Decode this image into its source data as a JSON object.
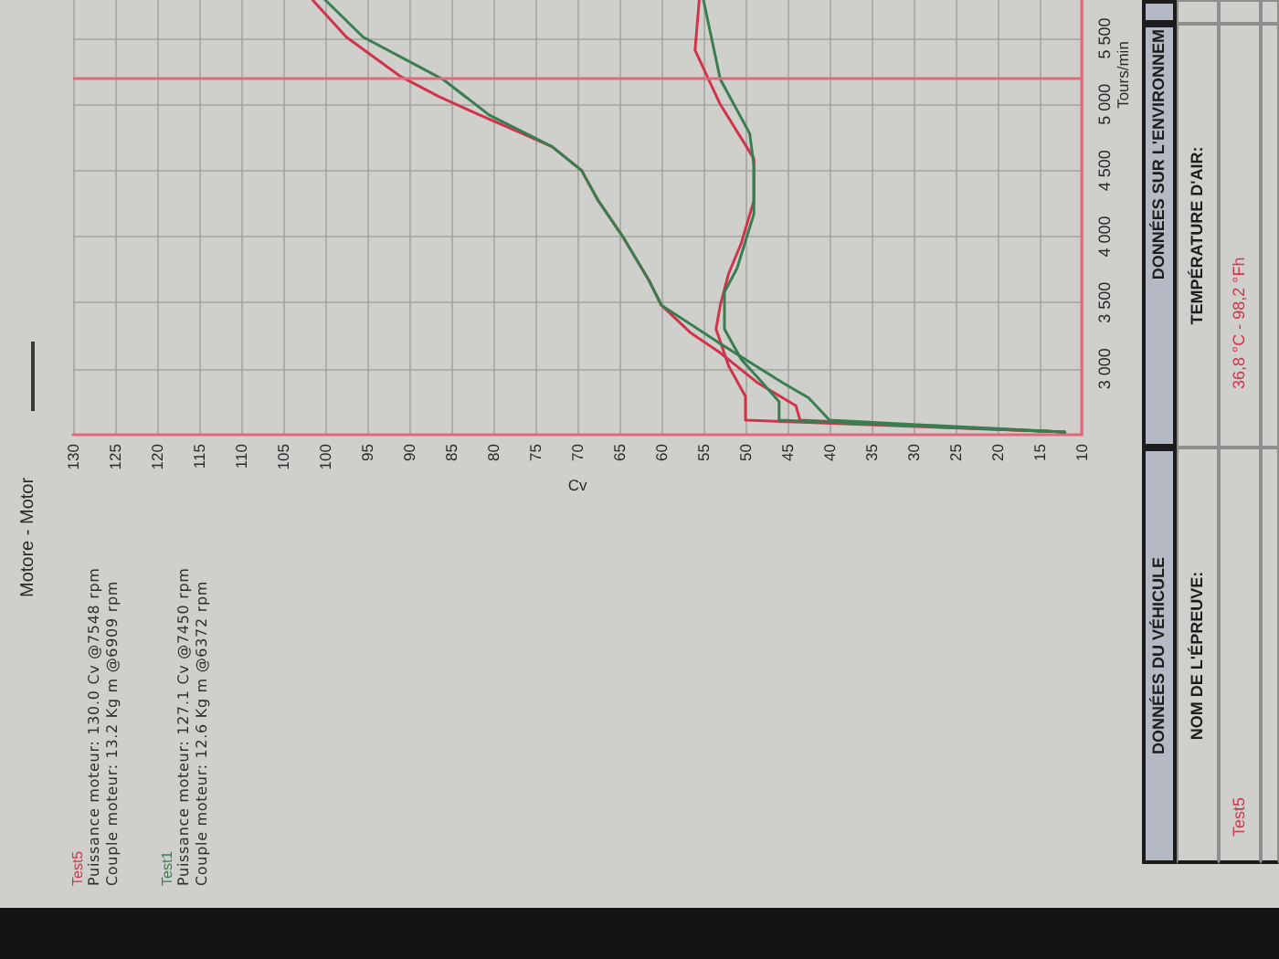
{
  "chart_data": {
    "type": "line",
    "title": "Motore - Motor",
    "xlabel": "Cv",
    "ylabel": "Tours/min",
    "xlim": [
      130,
      10
    ],
    "xticks": [
      130,
      125,
      120,
      115,
      110,
      105,
      100,
      95,
      90,
      85,
      80,
      75,
      70,
      65,
      60,
      55,
      50,
      45,
      40,
      35,
      30,
      25,
      20,
      15,
      10
    ],
    "ylim": [
      2500,
      5790
    ],
    "yticks": [
      {
        "value": 3000,
        "label": "3 000"
      },
      {
        "value": 3500,
        "label": "3 500"
      },
      {
        "value": 4000,
        "label": "4 000"
      },
      {
        "value": 4500,
        "label": "4 500"
      },
      {
        "value": 5000,
        "label": "5 000"
      },
      {
        "value": 5500,
        "label": "5 500"
      }
    ],
    "grid": true,
    "legend": "bottom left",
    "ref_lines": [
      {
        "axis": "y",
        "value": 5200,
        "color": "#e2697b"
      }
    ],
    "series": [
      {
        "name": "Test5",
        "color": "#d1334b",
        "x": [
          12,
          43.5,
          44,
          48.5,
          53,
          56.5,
          60,
          61.5,
          64.5,
          67.5,
          69.5,
          73,
          75.5,
          82,
          86.5,
          91,
          97.5,
          101.5
        ],
        "values": [
          2520,
          2610,
          2720,
          2890,
          3120,
          3270,
          3480,
          3670,
          3990,
          4270,
          4500,
          4680,
          4750,
          4930,
          5060,
          5210,
          5510,
          5790
        ]
      },
      {
        "color": "#d1334b",
        "x": [
          12,
          50,
          50,
          52,
          53.5,
          53,
          52,
          50.5,
          49,
          49,
          53,
          56,
          55.5
        ],
        "values": [
          2520,
          2610,
          2790,
          3020,
          3300,
          3480,
          3720,
          3950,
          4270,
          4590,
          5000,
          5410,
          5790
        ]
      },
      {
        "name": "Test1",
        "color": "#3a7d50",
        "x": [
          12,
          40,
          42.5,
          45.5,
          53,
          60,
          61.5,
          64.5,
          67.5,
          69.5,
          73,
          80.5,
          86,
          95.5,
          100
        ],
        "values": [
          2520,
          2610,
          2780,
          2890,
          3190,
          3480,
          3670,
          3990,
          4270,
          4500,
          4680,
          4920,
          5190,
          5510,
          5790
        ]
      },
      {
        "color": "#3a7d50",
        "x": [
          12,
          46,
          46,
          48.5,
          50.5,
          52.5,
          52.5,
          51,
          49,
          49,
          49.5,
          53,
          55
        ],
        "values": [
          2520,
          2610,
          2750,
          2930,
          3070,
          3300,
          3580,
          3760,
          4170,
          4540,
          4780,
          5190,
          5790
        ]
      }
    ],
    "annotations": [
      "Puissance moteur: 130.0 Cv @7548 rpm",
      "Couple moteur: 13.2 Kg m @6909 rpm",
      "Puissance moteur: 127.1 Cv @7450 rpm",
      "Couple moteur: 12.6 Kg m @6372 rpm",
      "DONNÉES DU VÉHICULE",
      "DONNÉES SUR L'ENVIRONNEM",
      "NOM DE L'ÉPREUVE:",
      "TEMPÉRATURE D'AIR:",
      "Test5",
      "36,8 °C - 98,2 °Fh"
    ]
  }
}
